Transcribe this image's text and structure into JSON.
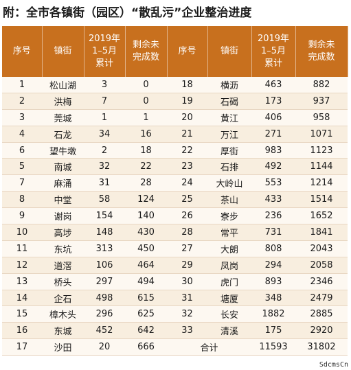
{
  "title": "附：全市各镇街（园区）“散乱污”企业整治进度",
  "headers": [
    "序号",
    "镇街",
    "2019年\n1–5月\n累计",
    "剩余未\n完成数",
    "序号",
    "镇街",
    "2019年\n1–5月\n累计",
    "剩余未\n完成数"
  ],
  "rows": [
    [
      "1",
      "松山湖",
      "3",
      "0",
      "18",
      "横沥",
      "463",
      "882"
    ],
    [
      "2",
      "洪梅",
      "7",
      "0",
      "19",
      "石碣",
      "173",
      "937"
    ],
    [
      "3",
      "莞城",
      "1",
      "1",
      "20",
      "黄江",
      "406",
      "958"
    ],
    [
      "4",
      "石龙",
      "34",
      "16",
      "21",
      "万江",
      "271",
      "1071"
    ],
    [
      "6",
      "望牛墩",
      "2",
      "18",
      "22",
      "厚街",
      "983",
      "1123"
    ],
    [
      "5",
      "南城",
      "32",
      "22",
      "23",
      "石排",
      "492",
      "1144"
    ],
    [
      "7",
      "麻涌",
      "31",
      "28",
      "24",
      "大岭山",
      "553",
      "1214"
    ],
    [
      "8",
      "中堂",
      "58",
      "124",
      "25",
      "茶山",
      "433",
      "1514"
    ],
    [
      "9",
      "谢岗",
      "154",
      "140",
      "26",
      "寮步",
      "236",
      "1652"
    ],
    [
      "10",
      "高埗",
      "148",
      "430",
      "28",
      "常平",
      "731",
      "1841"
    ],
    [
      "11",
      "东坑",
      "313",
      "450",
      "27",
      "大朗",
      "808",
      "2043"
    ],
    [
      "12",
      "道滘",
      "106",
      "464",
      "29",
      "凤岗",
      "294",
      "2058"
    ],
    [
      "13",
      "桥头",
      "297",
      "494",
      "30",
      "虎门",
      "893",
      "2346"
    ],
    [
      "14",
      "企石",
      "498",
      "615",
      "31",
      "塘厦",
      "348",
      "2479"
    ],
    [
      "15",
      "樟木头",
      "296",
      "625",
      "32",
      "长安",
      "1882",
      "2885"
    ],
    [
      "16",
      "东城",
      "452",
      "642",
      "33",
      "清溪",
      "175",
      "2920"
    ],
    [
      "17",
      "沙田",
      "20",
      "666",
      "",
      "合计",
      "11593",
      "31802"
    ]
  ],
  "watermark": "SdcmsCn",
  "colors": {
    "header_bg": "#c8701e",
    "row_even": "#f8eedf",
    "row_odd": "#fdf8f1"
  }
}
